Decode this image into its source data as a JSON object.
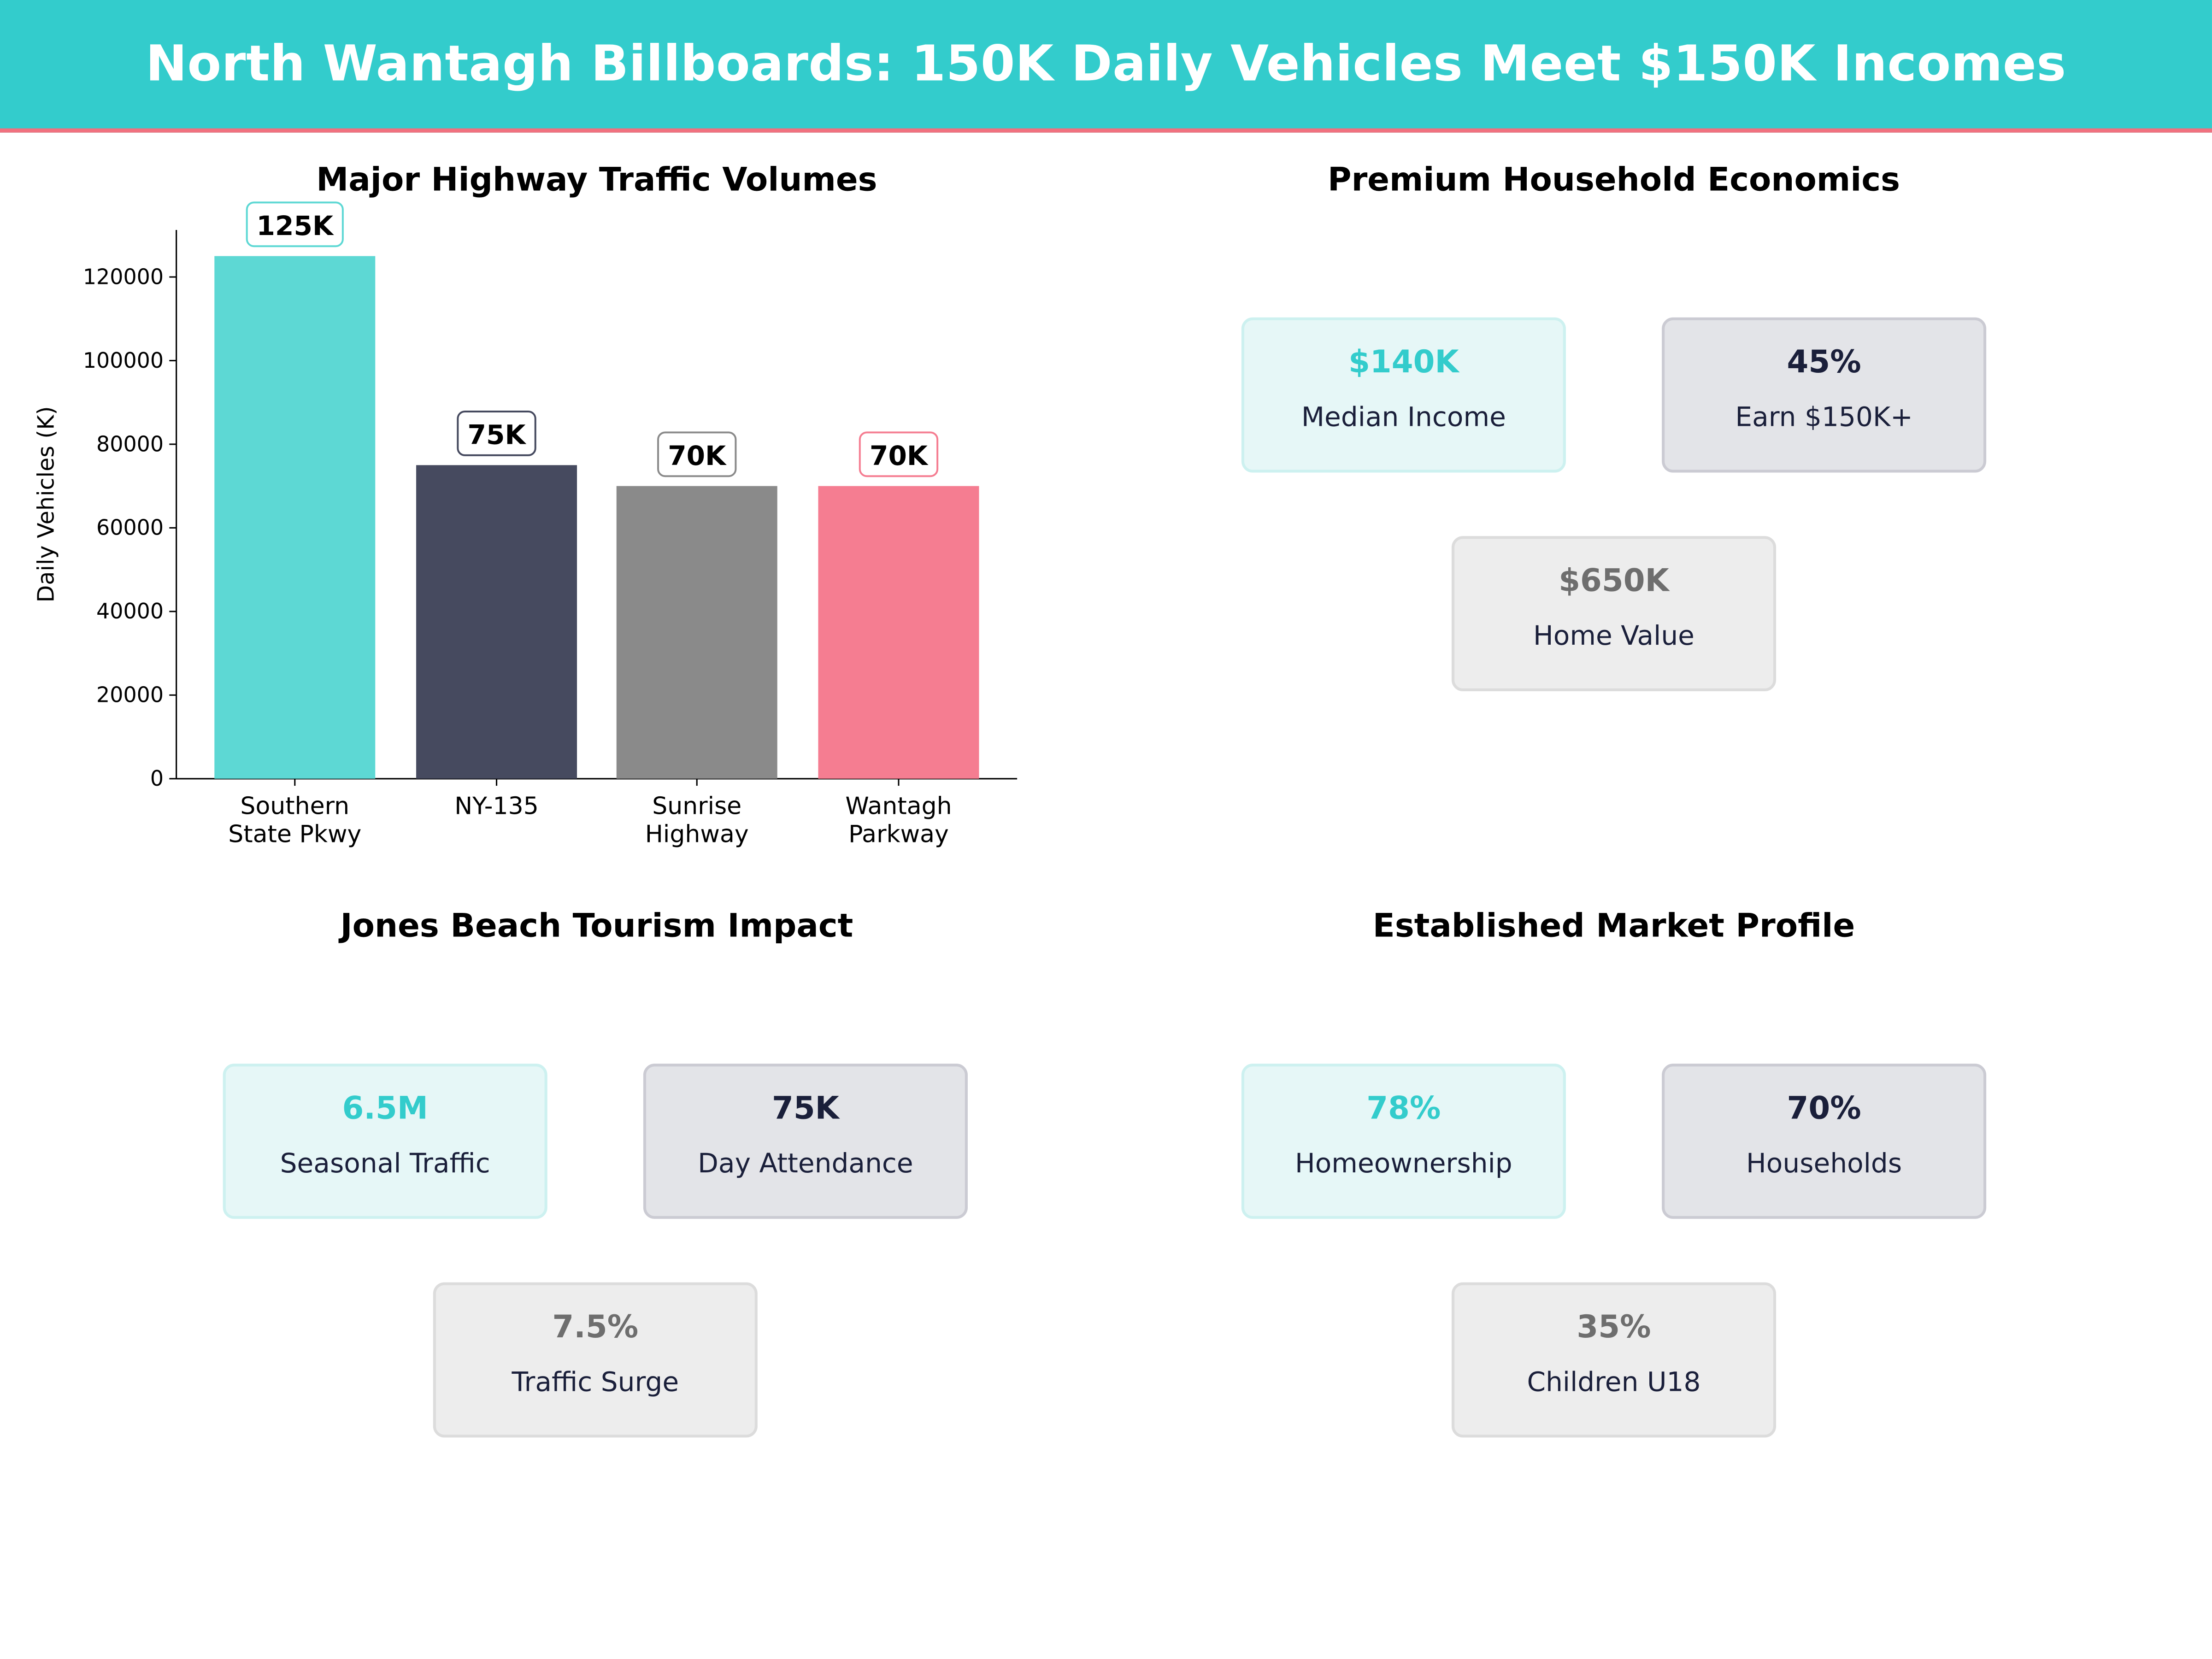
{
  "header": {
    "title": "North Wantagh Billboards: 150K Daily Vehicles Meet $150K Incomes"
  },
  "colors": {
    "teal": "#33CCCC",
    "accent_red": "#F0717F",
    "navy": "#1A1F3A",
    "gray": "#6E6E6E"
  },
  "chart_data": {
    "type": "bar",
    "title": "Major Highway Traffic Volumes",
    "xlabel": "",
    "ylabel": "Daily Vehicles (K)",
    "categories": [
      "Southern\nState Pkwy",
      "NY-135",
      "Sunrise\nHighway",
      "Wantagh\nParkway"
    ],
    "values": [
      125000,
      75000,
      70000,
      70000
    ],
    "data_labels": [
      "125K",
      "75K",
      "70K",
      "70K"
    ],
    "colors": [
      "#5DD8D4",
      "#464A5F",
      "#8A8A8A",
      "#F57D91"
    ],
    "ylim": [
      0,
      131250
    ],
    "yticks": [
      0,
      20000,
      40000,
      60000,
      80000,
      100000,
      120000
    ],
    "grid": false
  },
  "panels": [
    {
      "title": "Premium Household Economics",
      "cards": [
        {
          "value": "$140K",
          "label": "Median Income",
          "style": "teal"
        },
        {
          "value": "45%",
          "label": "Earn $150K+",
          "style": "dark"
        },
        {
          "value": "$650K",
          "label": "Home Value",
          "style": "gray"
        }
      ]
    },
    {
      "title": "Jones Beach Tourism Impact",
      "cards": [
        {
          "value": "6.5M",
          "label": "Seasonal Traffic",
          "style": "teal"
        },
        {
          "value": "75K",
          "label": "Day Attendance",
          "style": "dark"
        },
        {
          "value": "7.5%",
          "label": "Traffic Surge",
          "style": "gray"
        }
      ]
    },
    {
      "title": "Established Market Profile",
      "cards": [
        {
          "value": "78%",
          "label": "Homeownership",
          "style": "teal"
        },
        {
          "value": "70%",
          "label": "Households",
          "style": "dark"
        },
        {
          "value": "35%",
          "label": "Children U18",
          "style": "gray"
        }
      ]
    }
  ]
}
